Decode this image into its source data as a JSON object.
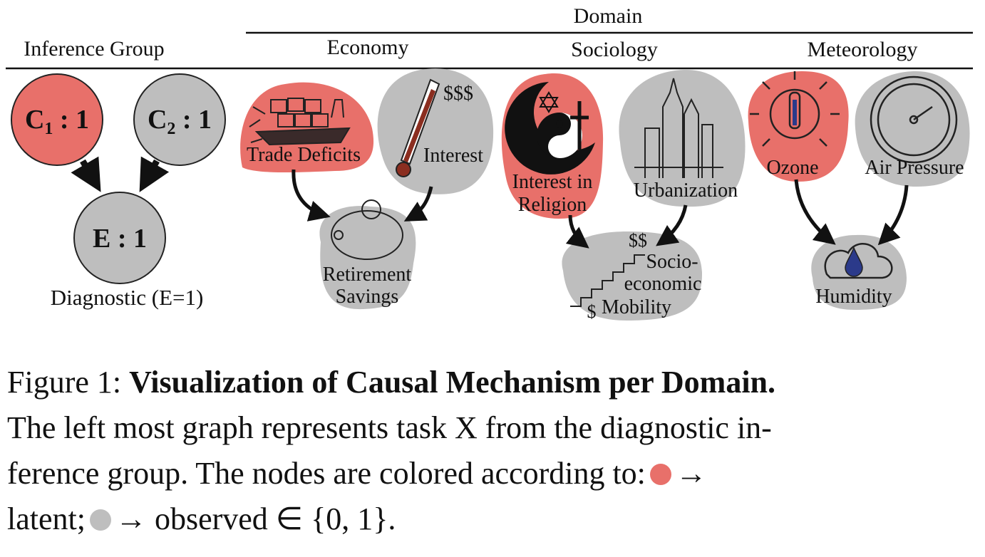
{
  "figure": {
    "header": {
      "domain": "Domain",
      "inference_group": "Inference Group",
      "economy": "Economy",
      "sociology": "Sociology",
      "meteorology": "Meteorology"
    },
    "colors": {
      "latent": "#E8706A",
      "observed": "#BEBEBE"
    },
    "inference_graph": {
      "c1_base": "C",
      "c1_sub": "1",
      "c1_val": " : 1",
      "c2_base": "C",
      "c2_sub": "2",
      "c2_val": " : 1",
      "e_label": "E : 1",
      "caption": "Diagnostic (E=1)"
    },
    "economy": {
      "trade_deficits": "Trade Deficits",
      "interest": "Interest",
      "dollar_signs": "$$$",
      "retirement_line1": "Retirement",
      "retirement_line2": "Savings"
    },
    "sociology": {
      "religion_line1": "Interest in",
      "religion_line2": "Religion",
      "urbanization": "Urbanization",
      "mobility_line1": "Socio-",
      "mobility_line2": "economic",
      "mobility_line3": "Mobility"
    },
    "meteorology": {
      "ozone": "Ozone",
      "air_pressure": "Air Pressure",
      "humidity": "Humidity"
    }
  },
  "caption": {
    "prefix": "Figure 1: ",
    "title": "Visualization of Causal Mechanism per Domain.",
    "line2": "The left most graph represents task X from the diagnostic in-",
    "line3": "ference group.  The nodes are colored according to:",
    "arrow": "→",
    "line4_a": "latent;",
    "line4_b": "observed ∈ {0, 1}."
  }
}
